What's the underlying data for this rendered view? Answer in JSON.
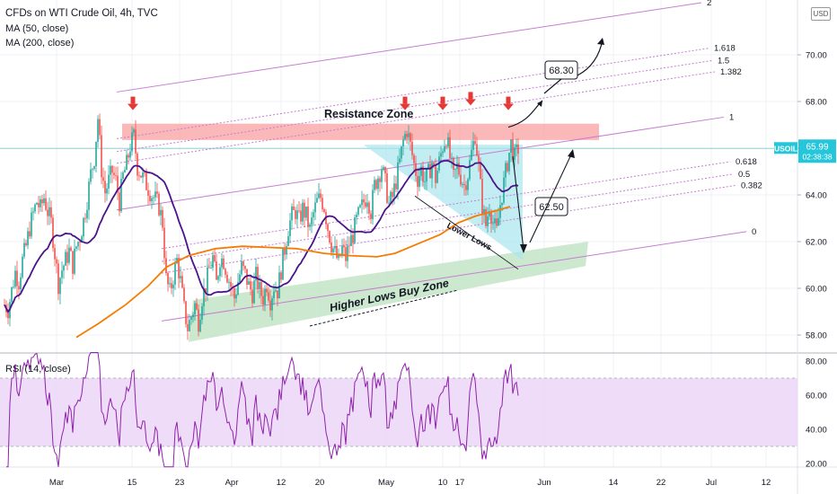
{
  "chart_data": {
    "type": "candlestick",
    "title": "CFDs on WTI Crude Oil, 4h, TVC",
    "indicators": [
      "MA (50, close)",
      "MA (200, close)"
    ],
    "symbol": "USOIL",
    "last_price": "65.99",
    "countdown": "02:38:38",
    "currency": "USD",
    "price_axis": {
      "min": 57,
      "max": 72,
      "ticks": [
        58.0,
        60.0,
        62.0,
        64.0,
        66.0,
        68.0,
        70.0
      ],
      "tick_labels": [
        "58.00",
        "60.00",
        "62.00",
        "64.00",
        "66.00",
        "68.00",
        "70.00"
      ]
    },
    "time_axis": {
      "labels": [
        "Mar",
        "15",
        "23",
        "Apr",
        "12",
        "20",
        "May",
        "10",
        "17",
        "Jun",
        "14",
        "22",
        "Jul",
        "12"
      ]
    },
    "price_path": [
      [
        0,
        59.3
      ],
      [
        4,
        59.1
      ],
      [
        8,
        59.9
      ],
      [
        12,
        60.7
      ],
      [
        16,
        60.3
      ],
      [
        20,
        61.2
      ],
      [
        24,
        61.8
      ],
      [
        28,
        62.6
      ],
      [
        32,
        63.2
      ],
      [
        36,
        63.7
      ],
      [
        40,
        63.4
      ],
      [
        44,
        63.9
      ],
      [
        48,
        63.3
      ],
      [
        52,
        62.8
      ],
      [
        56,
        61.5
      ],
      [
        60,
        60.2
      ],
      [
        64,
        60.8
      ],
      [
        68,
        61.2
      ],
      [
        72,
        61.6
      ],
      [
        76,
        61.0
      ],
      [
        80,
        61.8
      ],
      [
        84,
        62.2
      ],
      [
        88,
        62.9
      ],
      [
        92,
        63.8
      ],
      [
        96,
        64.9
      ],
      [
        100,
        65.6
      ],
      [
        104,
        67.3
      ],
      [
        108,
        65.1
      ],
      [
        112,
        64.1
      ],
      [
        116,
        64.6
      ],
      [
        120,
        65.0
      ],
      [
        124,
        64.6
      ],
      [
        128,
        63.7
      ],
      [
        132,
        64.8
      ],
      [
        136,
        65.3
      ],
      [
        140,
        66.1
      ],
      [
        144,
        66.5
      ],
      [
        148,
        65.2
      ],
      [
        152,
        64.9
      ],
      [
        156,
        64.6
      ],
      [
        160,
        64.3
      ],
      [
        164,
        64.0
      ],
      [
        168,
        63.8
      ],
      [
        172,
        63.5
      ],
      [
        176,
        62.8
      ],
      [
        180,
        60.4
      ],
      [
        184,
        59.8
      ],
      [
        188,
        60.5
      ],
      [
        192,
        61.2
      ],
      [
        196,
        60.3
      ],
      [
        200,
        59.1
      ],
      [
        204,
        58.3
      ],
      [
        208,
        58.8
      ],
      [
        212,
        59.3
      ],
      [
        216,
        58.6
      ],
      [
        220,
        59.6
      ],
      [
        224,
        60.1
      ],
      [
        228,
        60.8
      ],
      [
        232,
        61.3
      ],
      [
        236,
        60.2
      ],
      [
        240,
        61.3
      ],
      [
        244,
        61.2
      ],
      [
        248,
        60.6
      ],
      [
        252,
        60.1
      ],
      [
        256,
        59.6
      ],
      [
        260,
        60.3
      ],
      [
        264,
        60.9
      ],
      [
        268,
        60.6
      ],
      [
        272,
        60.1
      ],
      [
        276,
        59.8
      ],
      [
        280,
        60.5
      ],
      [
        284,
        59.9
      ],
      [
        288,
        59.6
      ],
      [
        292,
        60.2
      ],
      [
        296,
        59.5
      ],
      [
        300,
        60.1
      ],
      [
        304,
        59.9
      ],
      [
        308,
        60.8
      ],
      [
        312,
        61.7
      ],
      [
        316,
        62.6
      ],
      [
        320,
        63.1
      ],
      [
        324,
        63.3
      ],
      [
        328,
        62.9
      ],
      [
        332,
        63.4
      ],
      [
        336,
        63.1
      ],
      [
        340,
        62.5
      ],
      [
        344,
        63.2
      ],
      [
        348,
        63.7
      ],
      [
        352,
        63.9
      ],
      [
        356,
        63.5
      ],
      [
        360,
        62.6
      ],
      [
        364,
        61.9
      ],
      [
        368,
        61.5
      ],
      [
        372,
        61.1
      ],
      [
        376,
        61.7
      ],
      [
        380,
        61.3
      ],
      [
        384,
        61.9
      ],
      [
        388,
        62.3
      ],
      [
        392,
        62.9
      ],
      [
        396,
        63.3
      ],
      [
        400,
        63.7
      ],
      [
        404,
        64.0
      ],
      [
        408,
        63.3
      ],
      [
        412,
        64.4
      ],
      [
        416,
        64.8
      ],
      [
        420,
        65.2
      ],
      [
        424,
        64.5
      ],
      [
        428,
        63.6
      ],
      [
        432,
        63.9
      ],
      [
        436,
        64.6
      ],
      [
        440,
        65.4
      ],
      [
        444,
        66.3
      ],
      [
        448,
        66.8
      ],
      [
        452,
        66.1
      ],
      [
        456,
        65.3
      ],
      [
        460,
        64.7
      ],
      [
        464,
        65.1
      ],
      [
        468,
        64.6
      ],
      [
        472,
        64.9
      ],
      [
        476,
        65.4
      ],
      [
        480,
        64.7
      ],
      [
        484,
        65.4
      ],
      [
        488,
        66.1
      ],
      [
        492,
        66.5
      ],
      [
        496,
        65.6
      ],
      [
        500,
        64.7
      ],
      [
        504,
        65.2
      ],
      [
        508,
        64.8
      ],
      [
        512,
        64.4
      ],
      [
        516,
        64.9
      ],
      [
        520,
        65.8
      ],
      [
        524,
        66.6
      ],
      [
        528,
        65.2
      ],
      [
        532,
        63.5
      ],
      [
        536,
        62.7
      ],
      [
        540,
        63.6
      ],
      [
        544,
        62.8
      ],
      [
        548,
        62.4
      ],
      [
        552,
        63.6
      ],
      [
        556,
        64.5
      ],
      [
        560,
        65.4
      ],
      [
        564,
        66.2
      ],
      [
        568,
        65.6
      ],
      [
        572,
        65.99
      ]
    ],
    "rsi": {
      "label": "RSI (14, close)",
      "axis_ticks": [
        20.0,
        40.0,
        60.0,
        80.0
      ],
      "tick_labels": [
        "20.00",
        "40.00",
        "60.00",
        "80.00"
      ],
      "band": [
        30,
        70
      ]
    },
    "annotations": {
      "resistance_zone": "Resistance Zone",
      "buy_zone": "Higher Lows Buy Zone",
      "lower_lows": "Lower Lows",
      "target_up": "68.30",
      "target_down": "62.50"
    },
    "fib_labels": [
      "2",
      "1.618",
      "1.5",
      "1.382",
      "1",
      "0.618",
      "0.5",
      "0.382",
      "0"
    ],
    "colors": {
      "candle_up": "#26a69a",
      "candle_down": "#ef5350",
      "ma50": "#4a148c",
      "ma200": "#f57c00",
      "fib": "#c77dd1",
      "resistance": "#f8a0a0",
      "support": "#bfe3c3",
      "triangle": "#a8e6ee",
      "rsi_band": "#ecd6f7",
      "rsi_line": "#8e24aa",
      "arrow_red": "#e53935"
    }
  }
}
